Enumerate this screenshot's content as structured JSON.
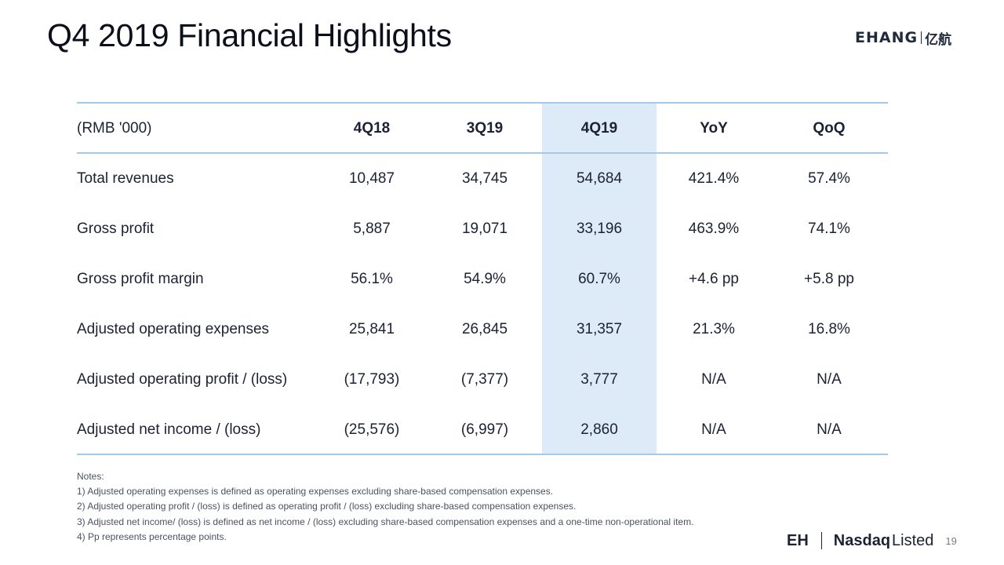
{
  "title": "Q4 2019 Financial Highlights",
  "logo": {
    "wordmark": "EHANG",
    "chinese": "亿航",
    "icon": "ehang-logo-icon"
  },
  "table": {
    "headers": [
      "(RMB '000)",
      "4Q18",
      "3Q19",
      "4Q19",
      "YoY",
      "QoQ"
    ],
    "highlight_column": "4Q19",
    "highlight_color": "#dcebf7",
    "rule_color": "#a9c8e6",
    "rows": [
      {
        "label": "Total revenues",
        "values": [
          "10,487",
          "34,745",
          "54,684",
          "421.4%",
          "57.4%"
        ]
      },
      {
        "label": "Gross profit",
        "values": [
          "5,887",
          "19,071",
          "33,196",
          "463.9%",
          "74.1%"
        ]
      },
      {
        "label": "Gross profit margin",
        "values": [
          "56.1%",
          "54.9%",
          "60.7%",
          "+4.6 pp",
          "+5.8 pp"
        ]
      },
      {
        "label": "Adjusted operating expenses",
        "values": [
          "25,841",
          "26,845",
          "31,357",
          "21.3%",
          "16.8%"
        ]
      },
      {
        "label": "Adjusted operating profit / (loss)",
        "values": [
          "(17,793)",
          "(7,377)",
          "3,777",
          "N/A",
          "N/A"
        ]
      },
      {
        "label": "Adjusted net income / (loss)",
        "values": [
          "(25,576)",
          "(6,997)",
          "2,860",
          "N/A",
          "N/A"
        ]
      }
    ]
  },
  "notes": [
    "Notes:",
    "1) Adjusted operating expenses is defined as operating expenses excluding share-based compensation expenses.",
    "2) Adjusted operating profit / (loss) is defined as operating profit / (loss) excluding share-based compensation expenses.",
    "3) Adjusted net income/ (loss) is defined as net income / (loss) excluding share-based compensation expenses and a one-time non-operational item.",
    "4) Pp represents percentage points."
  ],
  "footer": {
    "ticker": "EH",
    "exchange": "Nasdaq",
    "listed": "Listed",
    "page_number": "19"
  }
}
